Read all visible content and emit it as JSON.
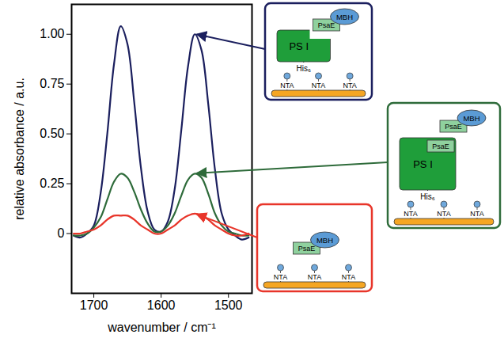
{
  "chart_data": {
    "type": "line",
    "x_label": "wavenumber / cm⁻¹",
    "y_label": "relative absorbance / a.u.",
    "xlim": [
      1733,
      1465
    ],
    "xticks": [
      1700,
      1600,
      1500
    ],
    "ylim": [
      -0.3,
      1.15
    ],
    "yticks": [
      0,
      0.25,
      {
        "value": 0.5,
        "label": "0.50"
      },
      0.75,
      {
        "value": 1,
        "label": "1.00"
      }
    ],
    "grid": false,
    "x": [
      1730,
      1720,
      1710,
      1700,
      1690,
      1680,
      1670,
      1660,
      1650,
      1640,
      1630,
      1620,
      1610,
      1600,
      1590,
      1580,
      1570,
      1560,
      1550,
      1540,
      1530,
      1520,
      1510,
      1500,
      1490,
      1480,
      1470
    ],
    "series": [
      {
        "color": "#1b1f5e",
        "values": [
          -0.01,
          -0.02,
          0.0,
          0.04,
          0.2,
          0.5,
          0.85,
          1.04,
          0.95,
          0.66,
          0.33,
          0.11,
          0.02,
          0.01,
          0.06,
          0.22,
          0.52,
          0.84,
          1.0,
          0.92,
          0.65,
          0.32,
          0.1,
          0.02,
          -0.01,
          -0.03,
          -0.02
        ],
        "inset": {
          "enzyme": "MBH",
          "subunits": [
            "PsaE"
          ],
          "core": "PS I",
          "tag": "His₆",
          "linkers": [
            "NTA",
            "NTA",
            "NTA"
          ]
        }
      },
      {
        "color": "#2e6b3a",
        "values": [
          -0.01,
          -0.01,
          0.0,
          0.03,
          0.08,
          0.17,
          0.26,
          0.3,
          0.28,
          0.21,
          0.12,
          0.05,
          0.01,
          0.01,
          0.04,
          0.1,
          0.19,
          0.27,
          0.3,
          0.28,
          0.2,
          0.1,
          0.04,
          0.01,
          0.0,
          -0.01,
          -0.01
        ],
        "inset": {
          "enzyme": "MBH",
          "subunits": [
            "PsaE",
            "PsaE"
          ],
          "core": "PS I",
          "tag": "His₆",
          "linkers": [
            "NTA",
            "NTA",
            "NTA"
          ]
        }
      },
      {
        "color": "#e8352a",
        "values": [
          0.0,
          0.0,
          0.01,
          0.02,
          0.04,
          0.07,
          0.09,
          0.09,
          0.09,
          0.07,
          0.04,
          0.02,
          0.0,
          0.0,
          0.02,
          0.04,
          0.07,
          0.09,
          0.1,
          0.09,
          0.07,
          0.04,
          0.02,
          0.0,
          -0.01,
          -0.01,
          0.0
        ],
        "inset": {
          "enzyme": "MBH",
          "subunits": [
            "PsaE"
          ],
          "linkers": [
            "NTA",
            "NTA",
            "NTA"
          ]
        }
      }
    ]
  }
}
